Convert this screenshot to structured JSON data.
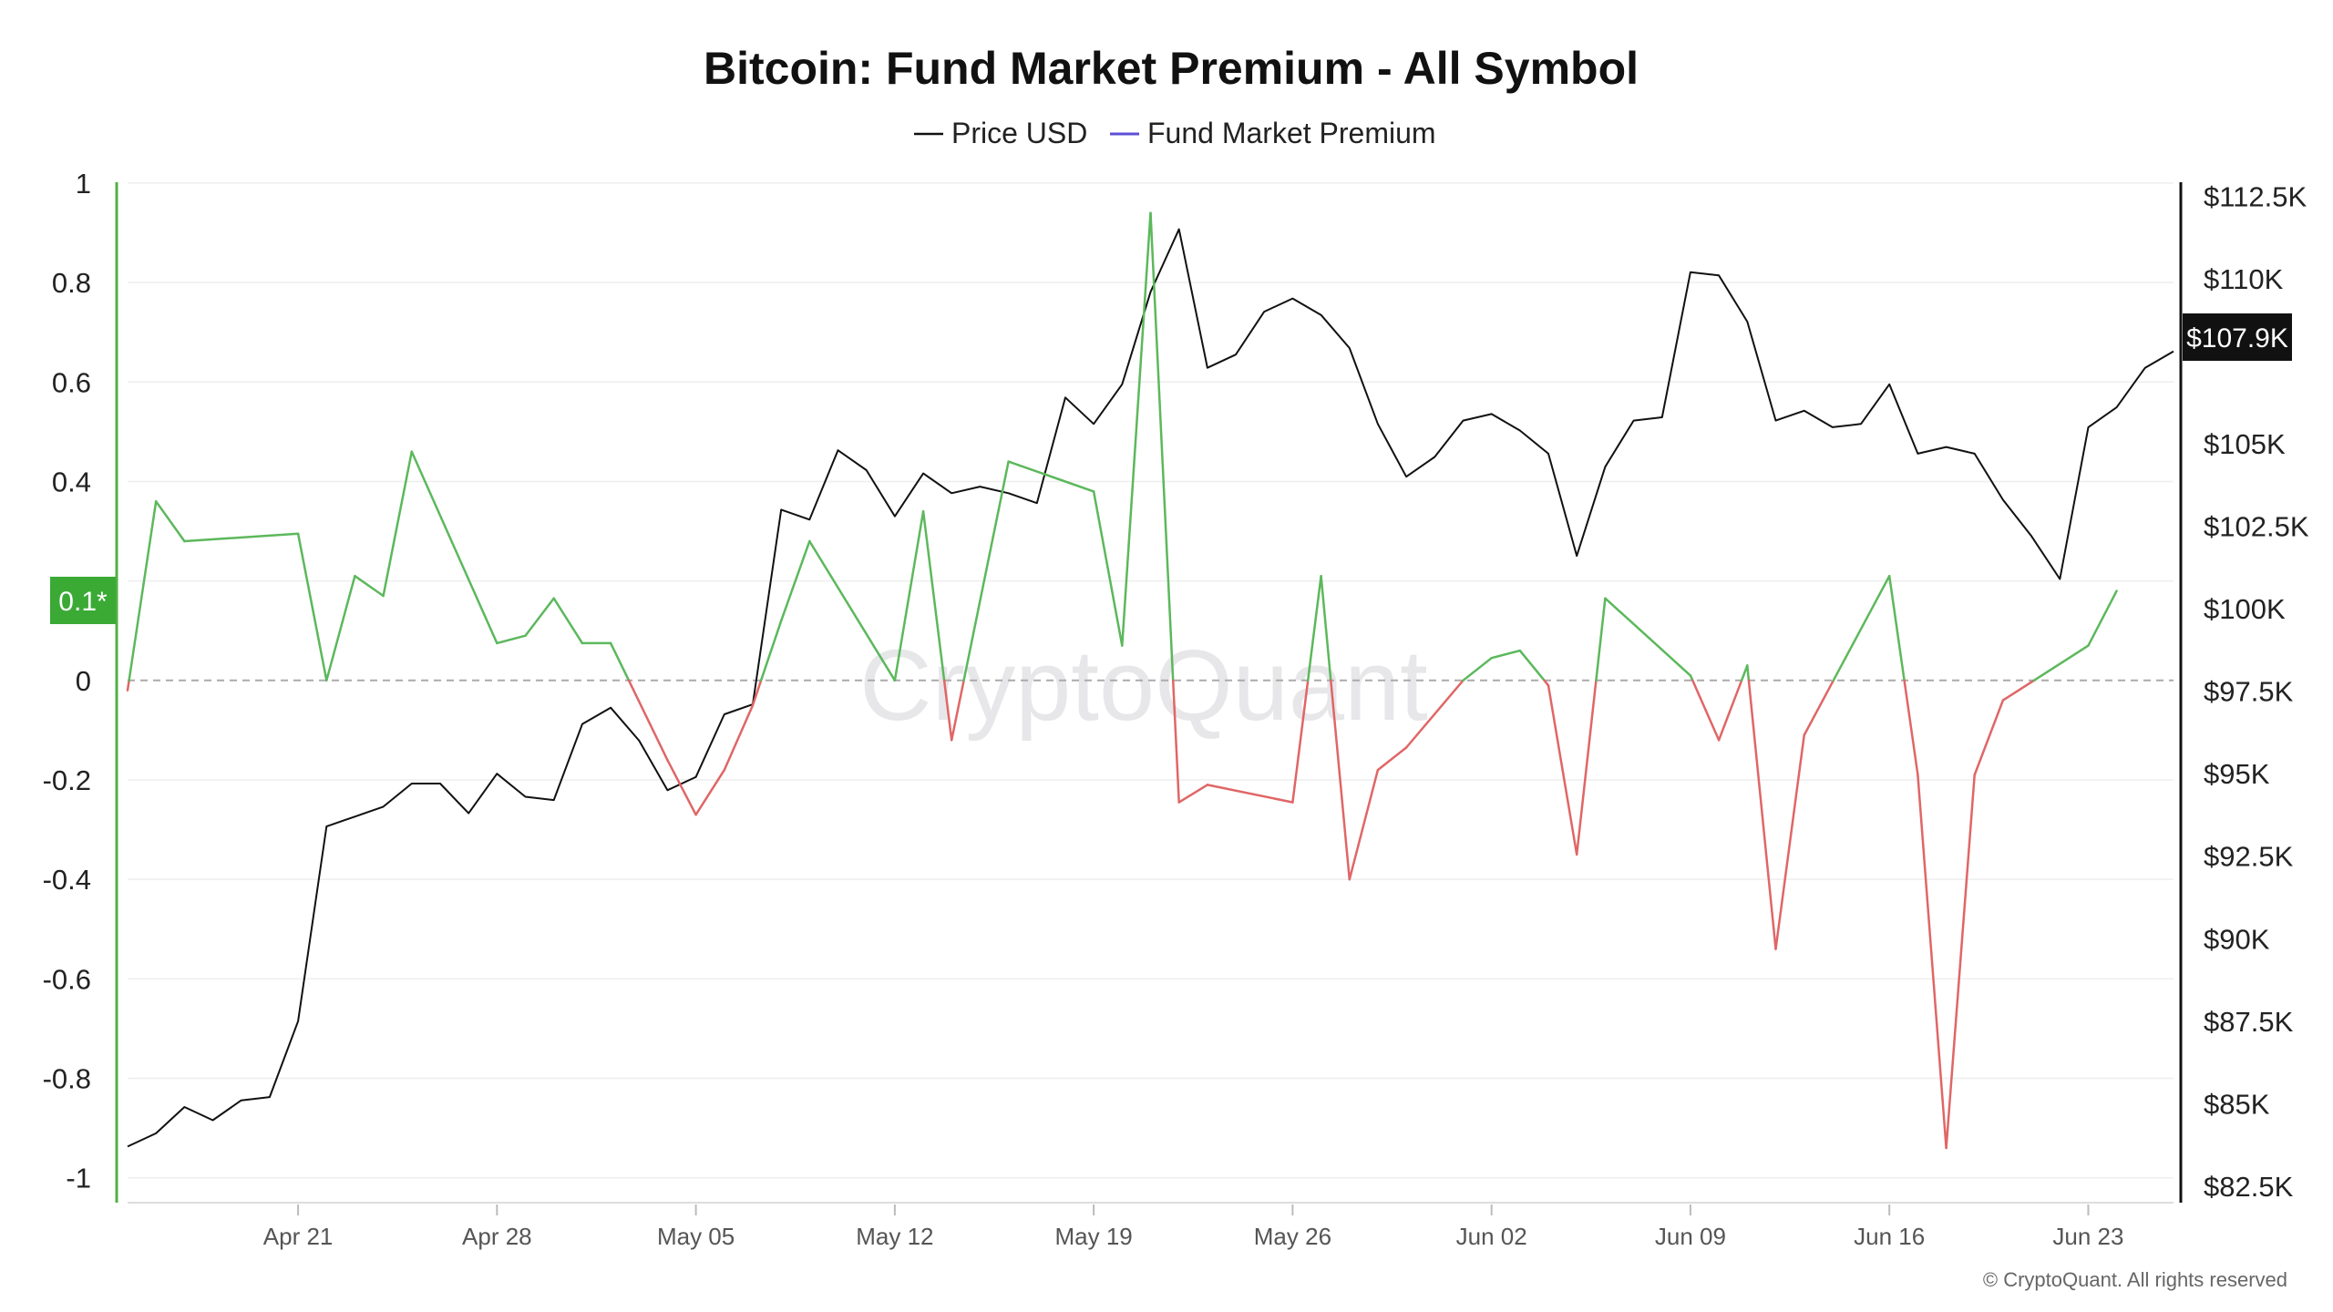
{
  "watermark": "CryptoQuant",
  "copyright": "© CryptoQuant. All rights reserved",
  "colors": {
    "price": "#111111",
    "premium_positive": "#5cb85c",
    "premium_negative": "#e06666",
    "legend_premium": "#5b4fd6",
    "left_axis": "#52b043",
    "right_axis": "#111111",
    "grid": "#eeeeee",
    "zero_line": "#aaaaaa"
  },
  "badges": {
    "left": "0.1*",
    "right": "$107.9K"
  },
  "chart_data": {
    "type": "line",
    "title": "Bitcoin: Fund Market Premium - All Symbol",
    "legend": [
      "Price USD",
      "Fund Market Premium"
    ],
    "legend_position": "top-center",
    "grid": true,
    "x_range": [
      "2025-04-15",
      "2025-06-26"
    ],
    "x_tick_labels": [
      "Apr 21",
      "Apr 28",
      "May 05",
      "May 12",
      "May 19",
      "May 26",
      "Jun 02",
      "Jun 09",
      "Jun 16",
      "Jun 23"
    ],
    "x_tick_dates": [
      "2025-04-21",
      "2025-04-28",
      "2025-05-05",
      "2025-05-12",
      "2025-05-19",
      "2025-05-26",
      "2025-06-02",
      "2025-06-09",
      "2025-06-16",
      "2025-06-23"
    ],
    "y_left": {
      "min": -1.05,
      "max": 1.02,
      "ticks": [
        1,
        0.8,
        0.6,
        0.4,
        0.2,
        0,
        -0.2,
        -0.4,
        -0.6,
        -0.8,
        -1
      ],
      "tick_labels": [
        "1",
        "0.8",
        "0.6",
        "0.4",
        "",
        "0",
        "-0.2",
        "-0.4",
        "-0.6",
        "-0.8",
        "-1"
      ]
    },
    "y_right": {
      "min": 82000,
      "max": 113200,
      "ticks": [
        112500,
        110000,
        105000,
        102500,
        100000,
        97500,
        95000,
        92500,
        90000,
        87500,
        85000,
        82500
      ],
      "tick_labels": [
        "$112.5K",
        "$110K",
        "$105K",
        "$102.5K",
        "$100K",
        "$97.5K",
        "$95K",
        "$92.5K",
        "$90K",
        "$87.5K",
        "$85K",
        "$82.5K"
      ]
    },
    "series": [
      {
        "name": "Price USD",
        "axis": "right",
        "points": [
          [
            "2025-04-15",
            83700
          ],
          [
            "2025-04-16",
            84100
          ],
          [
            "2025-04-17",
            84900
          ],
          [
            "2025-04-18",
            84500
          ],
          [
            "2025-04-19",
            85100
          ],
          [
            "2025-04-20",
            85200
          ],
          [
            "2025-04-21",
            87500
          ],
          [
            "2025-04-22",
            93400
          ],
          [
            "2025-04-23",
            93700
          ],
          [
            "2025-04-24",
            94000
          ],
          [
            "2025-04-25",
            94700
          ],
          [
            "2025-04-26",
            94700
          ],
          [
            "2025-04-27",
            93800
          ],
          [
            "2025-04-28",
            95000
          ],
          [
            "2025-04-29",
            94300
          ],
          [
            "2025-04-30",
            94200
          ],
          [
            "2025-05-01",
            96500
          ],
          [
            "2025-05-02",
            97000
          ],
          [
            "2025-05-03",
            96000
          ],
          [
            "2025-05-04",
            94500
          ],
          [
            "2025-05-05",
            94900
          ],
          [
            "2025-05-06",
            96800
          ],
          [
            "2025-05-07",
            97100
          ],
          [
            "2025-05-08",
            103000
          ],
          [
            "2025-05-09",
            102700
          ],
          [
            "2025-05-10",
            104800
          ],
          [
            "2025-05-11",
            104200
          ],
          [
            "2025-05-12",
            102800
          ],
          [
            "2025-05-13",
            104100
          ],
          [
            "2025-05-14",
            103500
          ],
          [
            "2025-05-15",
            103700
          ],
          [
            "2025-05-16",
            103500
          ],
          [
            "2025-05-17",
            103200
          ],
          [
            "2025-05-18",
            106400
          ],
          [
            "2025-05-19",
            105600
          ],
          [
            "2025-05-20",
            106800
          ],
          [
            "2025-05-21",
            109600
          ],
          [
            "2025-05-22",
            111500
          ],
          [
            "2025-05-23",
            107300
          ],
          [
            "2025-05-24",
            107700
          ],
          [
            "2025-05-25",
            109000
          ],
          [
            "2025-05-26",
            109400
          ],
          [
            "2025-05-27",
            108900
          ],
          [
            "2025-05-28",
            107900
          ],
          [
            "2025-05-29",
            105600
          ],
          [
            "2025-05-30",
            104000
          ],
          [
            "2025-05-31",
            104600
          ],
          [
            "2025-06-01",
            105700
          ],
          [
            "2025-06-02",
            105900
          ],
          [
            "2025-06-03",
            105400
          ],
          [
            "2025-06-04",
            104700
          ],
          [
            "2025-06-05",
            101600
          ],
          [
            "2025-06-06",
            104300
          ],
          [
            "2025-06-07",
            105700
          ],
          [
            "2025-06-08",
            105800
          ],
          [
            "2025-06-09",
            110200
          ],
          [
            "2025-06-10",
            110100
          ],
          [
            "2025-06-11",
            108700
          ],
          [
            "2025-06-12",
            105700
          ],
          [
            "2025-06-13",
            106000
          ],
          [
            "2025-06-14",
            105500
          ],
          [
            "2025-06-15",
            105600
          ],
          [
            "2025-06-16",
            106800
          ],
          [
            "2025-06-17",
            104700
          ],
          [
            "2025-06-18",
            104900
          ],
          [
            "2025-06-19",
            104700
          ],
          [
            "2025-06-20",
            103300
          ],
          [
            "2025-06-21",
            102200
          ],
          [
            "2025-06-22",
            100900
          ],
          [
            "2025-06-23",
            105500
          ],
          [
            "2025-06-24",
            106100
          ],
          [
            "2025-06-25",
            107300
          ],
          [
            "2025-06-26",
            107800
          ]
        ]
      },
      {
        "name": "Fund Market Premium",
        "axis": "left",
        "points": [
          [
            "2025-04-15",
            -0.02
          ],
          [
            "2025-04-16",
            0.36
          ],
          [
            "2025-04-17",
            0.28
          ],
          [
            "2025-04-21",
            0.295
          ],
          [
            "2025-04-22",
            0.0
          ],
          [
            "2025-04-23",
            0.21
          ],
          [
            "2025-04-24",
            0.17
          ],
          [
            "2025-04-25",
            0.46
          ],
          [
            "2025-04-28",
            0.075
          ],
          [
            "2025-04-29",
            0.09
          ],
          [
            "2025-04-30",
            0.165
          ],
          [
            "2025-05-01",
            0.075
          ],
          [
            "2025-05-02",
            0.075
          ],
          [
            "2025-05-04",
            -0.16
          ],
          [
            "2025-05-05",
            -0.27
          ],
          [
            "2025-05-06",
            -0.18
          ],
          [
            "2025-05-07",
            -0.05
          ],
          [
            "2025-05-08",
            0.12
          ],
          [
            "2025-05-09",
            0.28
          ],
          [
            "2025-05-12",
            0.0
          ],
          [
            "2025-05-13",
            0.34
          ],
          [
            "2025-05-14",
            -0.12
          ],
          [
            "2025-05-16",
            0.44
          ],
          [
            "2025-05-19",
            0.38
          ],
          [
            "2025-05-20",
            0.07
          ],
          [
            "2025-05-21",
            0.94
          ],
          [
            "2025-05-22",
            -0.245
          ],
          [
            "2025-05-23",
            -0.21
          ],
          [
            "2025-05-26",
            -0.245
          ],
          [
            "2025-05-27",
            0.21
          ],
          [
            "2025-05-28",
            -0.4
          ],
          [
            "2025-05-29",
            -0.18
          ],
          [
            "2025-05-30",
            -0.135
          ],
          [
            "2025-06-01",
            0.0
          ],
          [
            "2025-06-02",
            0.045
          ],
          [
            "2025-06-03",
            0.06
          ],
          [
            "2025-06-04",
            -0.01
          ],
          [
            "2025-06-05",
            -0.35
          ],
          [
            "2025-06-06",
            0.165
          ],
          [
            "2025-06-09",
            0.01
          ],
          [
            "2025-06-10",
            -0.12
          ],
          [
            "2025-06-11",
            0.03
          ],
          [
            "2025-06-12",
            -0.54
          ],
          [
            "2025-06-13",
            -0.11
          ],
          [
            "2025-06-16",
            0.21
          ],
          [
            "2025-06-17",
            -0.19
          ],
          [
            "2025-06-18",
            -0.94
          ],
          [
            "2025-06-19",
            -0.19
          ],
          [
            "2025-06-20",
            -0.04
          ],
          [
            "2025-06-23",
            0.07
          ],
          [
            "2025-06-24",
            0.18
          ]
        ]
      }
    ]
  }
}
